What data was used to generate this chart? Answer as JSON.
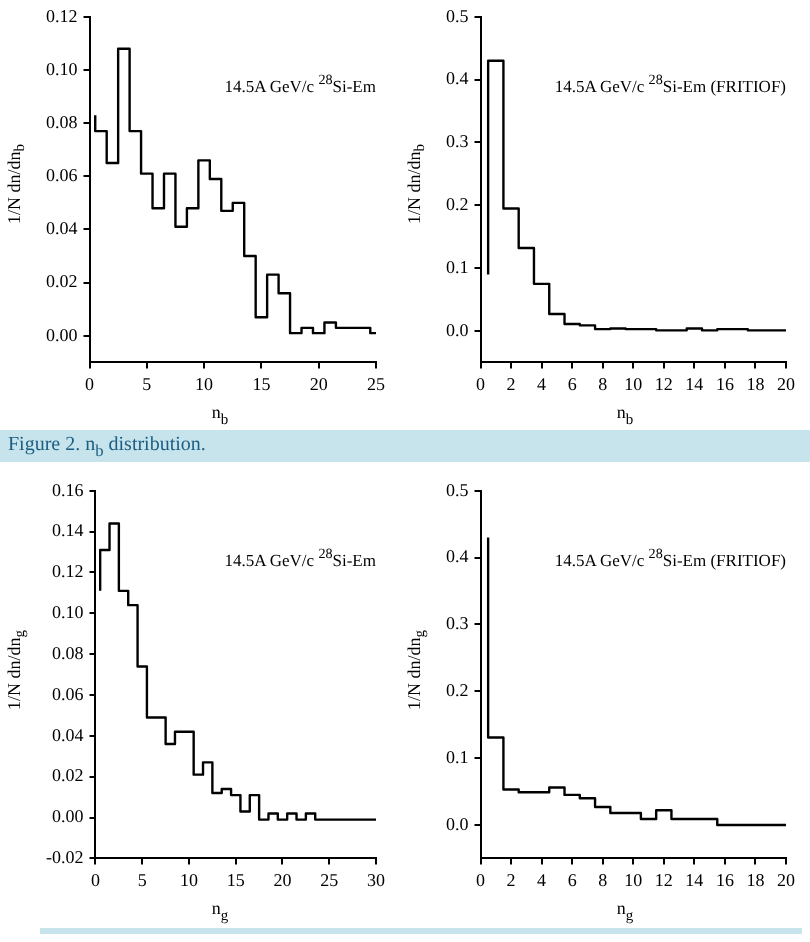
{
  "chart_data": [
    {
      "type": "step",
      "color": "#000000",
      "xlabel": "n$_{b}$",
      "ylabel": "1/N dn/dn$_{b}$",
      "annotations": [
        "14.5A GeV/c $^{28}$Si-Em",
        "Figure 2. n$_{b}$ distribution."
      ],
      "x": [
        0.5,
        0.5,
        1.5,
        2.5,
        3.5,
        4.5,
        5.5,
        6.5,
        7.5,
        8.5,
        9.5,
        10.5,
        11.5,
        12.5,
        13.5,
        14.5,
        15.5,
        16.5,
        17.5,
        18.5,
        19.5,
        20.5,
        21.5,
        24.5,
        25
      ],
      "values": [
        0.083,
        0.077,
        0.065,
        0.108,
        0.077,
        0.061,
        0.048,
        0.061,
        0.041,
        0.048,
        0.066,
        0.059,
        0.047,
        0.05,
        0.03,
        0.007,
        0.023,
        0.016,
        0.001,
        0.003,
        0.001,
        0.005,
        0.003,
        0.001,
        0.001
      ],
      "xlim": [
        0,
        25
      ],
      "xticks": [
        0,
        5,
        10,
        15,
        20,
        25
      ],
      "ylim": [
        -0.01,
        0.12
      ],
      "yticks": [
        {
          "value": 0,
          "label": "0.00"
        },
        {
          "value": 0.02,
          "label": "0.02"
        },
        {
          "value": 0.04,
          "label": "0.04"
        },
        {
          "value": 0.06,
          "label": "0.06"
        },
        {
          "value": 0.08,
          "label": "0.08"
        },
        {
          "value": 0.1,
          "label": "0.10"
        },
        {
          "value": 0.12,
          "label": "0.12"
        }
      ]
    },
    {
      "type": "step",
      "color": "#000000",
      "xlabel": "n$_{b}$",
      "ylabel": "1/N dn/dn$_{b}$",
      "annotations": [
        "14.5A GeV/c $^{28}$Si-Em (FRITIOF)"
      ],
      "x": [
        0.5,
        0.5,
        1.5,
        2.5,
        3.5,
        4.5,
        5.5,
        6.5,
        7.5,
        8.5,
        9.5,
        10.5,
        11.5,
        13.5,
        14.5,
        15.5,
        17.5,
        20
      ],
      "values": [
        0.09,
        0.43,
        0.195,
        0.132,
        0.075,
        0.027,
        0.011,
        0.009,
        0.003,
        0.004,
        0.003,
        0.003,
        0.001,
        0.004,
        0.001,
        0.003,
        0.001,
        0.001
      ],
      "xlim": [
        0,
        20
      ],
      "xticks": [
        0,
        2,
        4,
        6,
        8,
        10,
        12,
        14,
        16,
        18,
        20
      ],
      "ylim": [
        -0.05,
        0.5
      ],
      "yticks": [
        {
          "value": 0,
          "label": "0.0"
        },
        0.1,
        0.2,
        0.3,
        0.4,
        0.5
      ]
    },
    {
      "type": "step",
      "color": "#000000",
      "xlabel": "n$_{g}$",
      "ylabel": "1/N dn/dn$_{g}$",
      "annotations": [
        "14.5A GeV/c $^{28}$Si-Em"
      ],
      "x": [
        0.5,
        0.5,
        1.5,
        2.5,
        3.5,
        4.5,
        5.5,
        7.5,
        8.5,
        10.5,
        11.5,
        12.5,
        13.5,
        14.5,
        15.5,
        16.5,
        17.5,
        18.5,
        19.5,
        20.5,
        21.5,
        22.5,
        23.5,
        30
      ],
      "values": [
        0.111,
        0.131,
        0.144,
        0.111,
        0.104,
        0.074,
        0.049,
        0.036,
        0.042,
        0.021,
        0.027,
        0.012,
        0.014,
        0.011,
        0.003,
        0.011,
        -0.001,
        0.002,
        -0.001,
        0.002,
        -0.001,
        0.002,
        -0.001,
        -0.001
      ],
      "xlim": [
        0,
        30
      ],
      "xticks": [
        0,
        5,
        10,
        15,
        20,
        25,
        30
      ],
      "ylim": [
        -0.02,
        0.16
      ],
      "yticks": [
        {
          "value": -0.02,
          "label": "-0.02"
        },
        {
          "value": 0,
          "label": "0.00"
        },
        {
          "value": 0.02,
          "label": "0.02"
        },
        {
          "value": 0.04,
          "label": "0.04"
        },
        {
          "value": 0.06,
          "label": "0.06"
        },
        {
          "value": 0.08,
          "label": "0.08"
        },
        {
          "value": 0.1,
          "label": "0.10"
        },
        {
          "value": 0.12,
          "label": "0.12"
        },
        {
          "value": 0.14,
          "label": "0.14"
        },
        {
          "value": 0.16,
          "label": "0.16"
        }
      ]
    },
    {
      "type": "step",
      "color": "#000000",
      "xlabel": "n$_{g}$",
      "ylabel": "1/N dn/dn$_{g}$",
      "annotations": [
        "14.5A GeV/c $^{28}$Si-Em (FRITIOF)"
      ],
      "x": [
        0.5,
        0.5,
        1.5,
        2.5,
        4.5,
        5.5,
        6.5,
        7.5,
        8.5,
        10.5,
        11.5,
        12.5,
        15.5,
        20
      ],
      "values": [
        0.43,
        0.131,
        0.053,
        0.049,
        0.056,
        0.045,
        0.04,
        0.027,
        0.018,
        0.009,
        0.022,
        0.009,
        0.0,
        0.0
      ],
      "xlim": [
        0,
        20
      ],
      "xticks": [
        0,
        2,
        4,
        6,
        8,
        10,
        12,
        14,
        16,
        18,
        20
      ],
      "ylim": [
        -0.05,
        0.5
      ],
      "yticks": [
        {
          "value": 0,
          "label": "0.0"
        },
        0.1,
        0.2,
        0.3,
        0.4,
        0.5
      ]
    }
  ]
}
